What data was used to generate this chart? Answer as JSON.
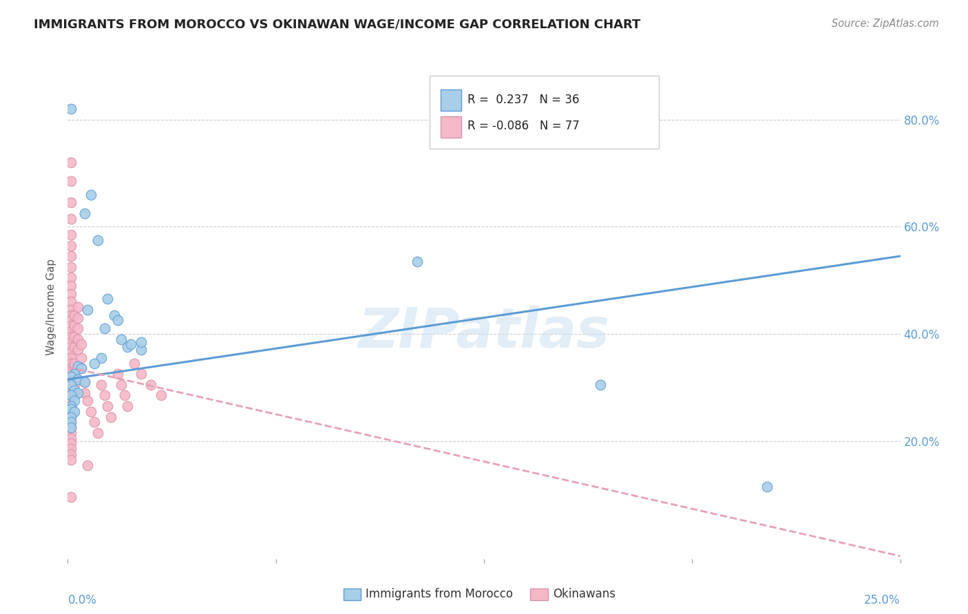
{
  "title": "IMMIGRANTS FROM MOROCCO VS OKINAWAN WAGE/INCOME GAP CORRELATION CHART",
  "source": "Source: ZipAtlas.com",
  "ylabel": "Wage/Income Gap",
  "yticks": [
    "80.0%",
    "60.0%",
    "40.0%",
    "20.0%"
  ],
  "ytick_vals": [
    0.8,
    0.6,
    0.4,
    0.2
  ],
  "xlim": [
    0.0,
    0.25
  ],
  "ylim": [
    -0.02,
    0.92
  ],
  "watermark": "ZIPatlas",
  "blue_color": "#a8cfe8",
  "pink_color": "#f5b8c8",
  "blue_line_color": "#5b9bd5",
  "pink_line_color": "#e8a0b4",
  "blue_r": 0.237,
  "blue_n": 36,
  "pink_r": -0.086,
  "pink_n": 77,
  "blue_points": [
    [
      0.001,
      0.82
    ],
    [
      0.007,
      0.66
    ],
    [
      0.005,
      0.625
    ],
    [
      0.009,
      0.575
    ],
    [
      0.012,
      0.465
    ],
    [
      0.006,
      0.445
    ],
    [
      0.014,
      0.435
    ],
    [
      0.015,
      0.425
    ],
    [
      0.011,
      0.41
    ],
    [
      0.016,
      0.39
    ],
    [
      0.018,
      0.375
    ],
    [
      0.022,
      0.37
    ],
    [
      0.01,
      0.355
    ],
    [
      0.008,
      0.345
    ],
    [
      0.003,
      0.34
    ],
    [
      0.004,
      0.335
    ],
    [
      0.019,
      0.38
    ],
    [
      0.002,
      0.325
    ],
    [
      0.001,
      0.32
    ],
    [
      0.003,
      0.315
    ],
    [
      0.005,
      0.31
    ],
    [
      0.001,
      0.305
    ],
    [
      0.002,
      0.295
    ],
    [
      0.003,
      0.29
    ],
    [
      0.001,
      0.285
    ],
    [
      0.002,
      0.275
    ],
    [
      0.001,
      0.265
    ],
    [
      0.001,
      0.26
    ],
    [
      0.002,
      0.255
    ],
    [
      0.001,
      0.245
    ],
    [
      0.001,
      0.235
    ],
    [
      0.001,
      0.225
    ],
    [
      0.022,
      0.385
    ],
    [
      0.105,
      0.535
    ],
    [
      0.16,
      0.305
    ],
    [
      0.21,
      0.115
    ]
  ],
  "pink_points": [
    [
      0.001,
      0.72
    ],
    [
      0.001,
      0.685
    ],
    [
      0.001,
      0.645
    ],
    [
      0.001,
      0.615
    ],
    [
      0.001,
      0.585
    ],
    [
      0.001,
      0.565
    ],
    [
      0.001,
      0.545
    ],
    [
      0.001,
      0.525
    ],
    [
      0.001,
      0.505
    ],
    [
      0.001,
      0.49
    ],
    [
      0.001,
      0.475
    ],
    [
      0.001,
      0.46
    ],
    [
      0.001,
      0.445
    ],
    [
      0.001,
      0.435
    ],
    [
      0.001,
      0.425
    ],
    [
      0.001,
      0.415
    ],
    [
      0.001,
      0.405
    ],
    [
      0.001,
      0.395
    ],
    [
      0.001,
      0.385
    ],
    [
      0.001,
      0.375
    ],
    [
      0.001,
      0.365
    ],
    [
      0.001,
      0.355
    ],
    [
      0.001,
      0.345
    ],
    [
      0.001,
      0.335
    ],
    [
      0.001,
      0.325
    ],
    [
      0.001,
      0.315
    ],
    [
      0.001,
      0.305
    ],
    [
      0.001,
      0.295
    ],
    [
      0.001,
      0.285
    ],
    [
      0.001,
      0.275
    ],
    [
      0.001,
      0.265
    ],
    [
      0.001,
      0.255
    ],
    [
      0.001,
      0.245
    ],
    [
      0.001,
      0.235
    ],
    [
      0.001,
      0.225
    ],
    [
      0.001,
      0.215
    ],
    [
      0.001,
      0.205
    ],
    [
      0.001,
      0.195
    ],
    [
      0.001,
      0.185
    ],
    [
      0.001,
      0.175
    ],
    [
      0.001,
      0.165
    ],
    [
      0.001,
      0.095
    ],
    [
      0.002,
      0.435
    ],
    [
      0.002,
      0.415
    ],
    [
      0.002,
      0.395
    ],
    [
      0.002,
      0.375
    ],
    [
      0.002,
      0.345
    ],
    [
      0.002,
      0.325
    ],
    [
      0.002,
      0.305
    ],
    [
      0.002,
      0.285
    ],
    [
      0.003,
      0.45
    ],
    [
      0.003,
      0.43
    ],
    [
      0.003,
      0.41
    ],
    [
      0.003,
      0.39
    ],
    [
      0.003,
      0.37
    ],
    [
      0.004,
      0.38
    ],
    [
      0.004,
      0.355
    ],
    [
      0.004,
      0.335
    ],
    [
      0.005,
      0.31
    ],
    [
      0.005,
      0.29
    ],
    [
      0.006,
      0.275
    ],
    [
      0.007,
      0.255
    ],
    [
      0.008,
      0.235
    ],
    [
      0.009,
      0.215
    ],
    [
      0.01,
      0.305
    ],
    [
      0.011,
      0.285
    ],
    [
      0.012,
      0.265
    ],
    [
      0.013,
      0.245
    ],
    [
      0.015,
      0.325
    ],
    [
      0.016,
      0.305
    ],
    [
      0.017,
      0.285
    ],
    [
      0.018,
      0.265
    ],
    [
      0.02,
      0.345
    ],
    [
      0.022,
      0.325
    ],
    [
      0.025,
      0.305
    ],
    [
      0.028,
      0.285
    ],
    [
      0.006,
      0.155
    ]
  ]
}
